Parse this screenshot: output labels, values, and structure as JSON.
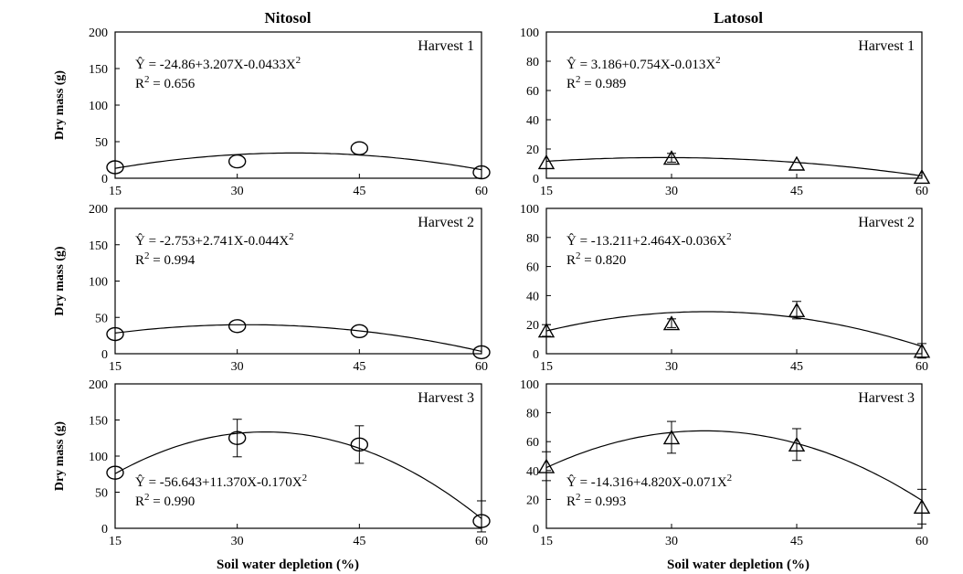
{
  "columns": [
    {
      "title": "Nitosol",
      "xlabel": "Soil water depletion  (%)"
    },
    {
      "title": "Latosol",
      "xlabel": "Soil water depletion  (%)"
    }
  ],
  "chart_data": [
    {
      "type": "scatter",
      "soil": "Nitosol",
      "title": "Harvest 1",
      "ylabel": "Dry mass (g)",
      "marker": "circle",
      "x": [
        15,
        30,
        45,
        60
      ],
      "y": [
        15,
        23,
        41,
        8
      ],
      "err": [
        0,
        0,
        0,
        0
      ],
      "xlim": [
        15,
        60
      ],
      "ylim": [
        0,
        200
      ],
      "xticks": [
        15,
        30,
        45,
        60
      ],
      "yticks": [
        0,
        50,
        100,
        150,
        200
      ],
      "equation": "Ŷ = -24.86+3.207X-0.0433X",
      "equation_exp": "2",
      "r2_label": "R",
      "r2_exp": "2",
      "r2_value": " =  0.656",
      "coef": [
        -24.86,
        3.207,
        -0.0433
      ],
      "annot_pos": "upper-left"
    },
    {
      "type": "scatter",
      "soil": "Nitosol",
      "title": "Harvest 2",
      "ylabel": "Dry mass (g)",
      "marker": "circle",
      "x": [
        15,
        30,
        45,
        60
      ],
      "y": [
        27,
        38,
        31,
        2
      ],
      "err": [
        0,
        0,
        0,
        0
      ],
      "xlim": [
        15,
        60
      ],
      "ylim": [
        0,
        200
      ],
      "xticks": [
        15,
        30,
        45,
        60
      ],
      "yticks": [
        0,
        50,
        100,
        150,
        200
      ],
      "equation": "Ŷ = -2.753+2.741X-0.044X",
      "equation_exp": "2",
      "r2_label": "R",
      "r2_exp": "2",
      "r2_value": " =  0.994",
      "coef": [
        -2.753,
        2.741,
        -0.044
      ],
      "annot_pos": "upper-left"
    },
    {
      "type": "scatter",
      "soil": "Nitosol",
      "title": "Harvest 3",
      "ylabel": "Dry mass (g)",
      "marker": "circle",
      "x": [
        15,
        30,
        45,
        60
      ],
      "y": [
        77,
        125,
        116,
        10
      ],
      "err": [
        0,
        26,
        26,
        28
      ],
      "xlim": [
        15,
        60
      ],
      "ylim": [
        0,
        200
      ],
      "xticks": [
        15,
        30,
        45,
        60
      ],
      "yticks": [
        0,
        50,
        100,
        150,
        200
      ],
      "equation": "Ŷ = -56.643+11.370X-0.170X",
      "equation_exp": "2",
      "r2_label": "R",
      "r2_exp": "2",
      "r2_value": " =  0.990",
      "coef": [
        -56.643,
        11.37,
        -0.17
      ],
      "annot_pos": "lower-left"
    },
    {
      "type": "scatter",
      "soil": "Latosol",
      "title": "Harvest 1",
      "ylabel": "",
      "marker": "triangle",
      "x": [
        15,
        30,
        45,
        60
      ],
      "y": [
        11,
        14,
        10,
        1
      ],
      "err": [
        0,
        3,
        0,
        0
      ],
      "xlim": [
        15,
        60
      ],
      "ylim": [
        0,
        100
      ],
      "xticks": [
        15,
        30,
        45,
        60
      ],
      "yticks": [
        0,
        20,
        40,
        60,
        80,
        100
      ],
      "equation": "Ŷ = 3.186+0.754X-0.013X",
      "equation_exp": "2",
      "r2_label": "R",
      "r2_exp": "2",
      "r2_value": " =  0.989",
      "coef": [
        3.186,
        0.754,
        -0.013
      ],
      "annot_pos": "upper-left"
    },
    {
      "type": "scatter",
      "soil": "Latosol",
      "title": "Harvest 2",
      "ylabel": "",
      "marker": "triangle",
      "x": [
        15,
        30,
        45,
        60
      ],
      "y": [
        16,
        21,
        30,
        2
      ],
      "err": [
        4,
        3,
        6,
        5
      ],
      "xlim": [
        15,
        60
      ],
      "ylim": [
        0,
        100
      ],
      "xticks": [
        15,
        30,
        45,
        60
      ],
      "yticks": [
        0,
        20,
        40,
        60,
        80,
        100
      ],
      "equation": "Ŷ = -13.211+2.464X-0.036X",
      "equation_exp": "2",
      "r2_label": "R",
      "r2_exp": "2",
      "r2_value": " =  0.820",
      "coef": [
        -13.211,
        2.464,
        -0.036
      ],
      "annot_pos": "upper-left"
    },
    {
      "type": "scatter",
      "soil": "Latosol",
      "title": "Harvest 3",
      "ylabel": "",
      "marker": "triangle",
      "x": [
        15,
        30,
        45,
        60
      ],
      "y": [
        43,
        63,
        58,
        15
      ],
      "err": [
        10,
        11,
        11,
        12
      ],
      "xlim": [
        15,
        60
      ],
      "ylim": [
        0,
        100
      ],
      "xticks": [
        15,
        30,
        45,
        60
      ],
      "yticks": [
        0,
        20,
        40,
        60,
        80,
        100
      ],
      "equation": "Ŷ = -14.316+4.820X-0.071X",
      "equation_exp": "2",
      "r2_label": "R",
      "r2_exp": "2",
      "r2_value": " =  0.993",
      "coef": [
        -14.316,
        4.82,
        -0.071
      ],
      "annot_pos": "lower-left"
    }
  ]
}
